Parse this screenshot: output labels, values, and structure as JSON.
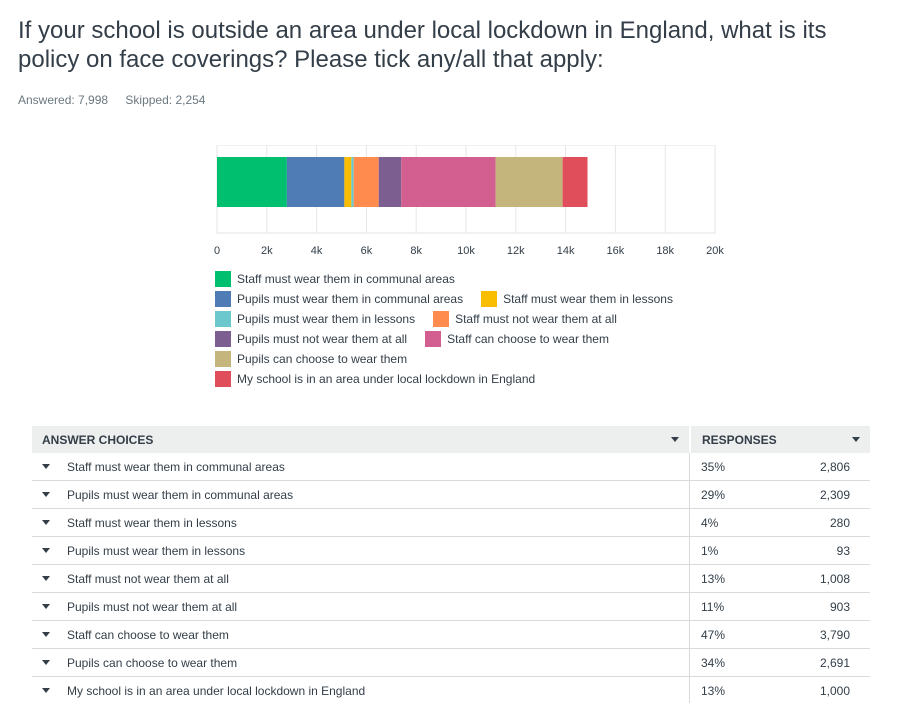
{
  "question": "If your school is outside an area under local lockdown in England, what is its policy on face coverings? Please tick any/all that apply:",
  "stats": {
    "answered_label": "Answered: 7,998",
    "skipped_label": "Skipped: 2,254"
  },
  "chart_data": {
    "type": "bar",
    "orientation": "horizontal",
    "stacked": true,
    "title": "",
    "xlabel": "",
    "ylabel": "",
    "xlim": [
      0,
      20000
    ],
    "x_ticks": [
      "0",
      "2k",
      "4k",
      "6k",
      "8k",
      "10k",
      "12k",
      "14k",
      "16k",
      "18k",
      "20k"
    ],
    "grid": true,
    "legend_position": "bottom",
    "series": [
      {
        "name": "Staff must wear them in communal areas",
        "values": [
          2806
        ],
        "color": "#00bf6f"
      },
      {
        "name": "Pupils must wear them in communal areas",
        "values": [
          2309
        ],
        "color": "#507cb6"
      },
      {
        "name": "Staff must wear them in lessons",
        "values": [
          280
        ],
        "color": "#f9be00"
      },
      {
        "name": "Pupils must wear them in lessons",
        "values": [
          93
        ],
        "color": "#6bc8cd"
      },
      {
        "name": "Staff must not wear them at all",
        "values": [
          1008
        ],
        "color": "#ff8b4f"
      },
      {
        "name": "Pupils must not wear them at all",
        "values": [
          903
        ],
        "color": "#7d5e90"
      },
      {
        "name": "Staff can choose to wear them",
        "values": [
          3790
        ],
        "color": "#d25f90"
      },
      {
        "name": "Pupils can choose to wear them",
        "values": [
          2691
        ],
        "color": "#c4b57d"
      },
      {
        "name": "My school is in an area under local lockdown in England",
        "values": [
          1000
        ],
        "color": "#e04e5b"
      }
    ]
  },
  "table": {
    "header_choices": "ANSWER CHOICES",
    "header_responses": "RESPONSES",
    "rows": [
      {
        "choice": "Staff must wear them in communal areas",
        "pct": "35%",
        "count": "2,806"
      },
      {
        "choice": "Pupils must wear them in communal areas",
        "pct": "29%",
        "count": "2,309"
      },
      {
        "choice": "Staff must wear them in lessons",
        "pct": "4%",
        "count": "280"
      },
      {
        "choice": "Pupils must wear them in lessons",
        "pct": "1%",
        "count": "93"
      },
      {
        "choice": "Staff must not wear them at all",
        "pct": "13%",
        "count": "1,008"
      },
      {
        "choice": "Pupils must not wear them at all",
        "pct": "11%",
        "count": "903"
      },
      {
        "choice": "Staff can choose to wear them",
        "pct": "47%",
        "count": "3,790"
      },
      {
        "choice": "Pupils can choose to wear them",
        "pct": "34%",
        "count": "2,691"
      },
      {
        "choice": "My school is in an area under local lockdown in England",
        "pct": "13%",
        "count": "1,000"
      }
    ]
  }
}
